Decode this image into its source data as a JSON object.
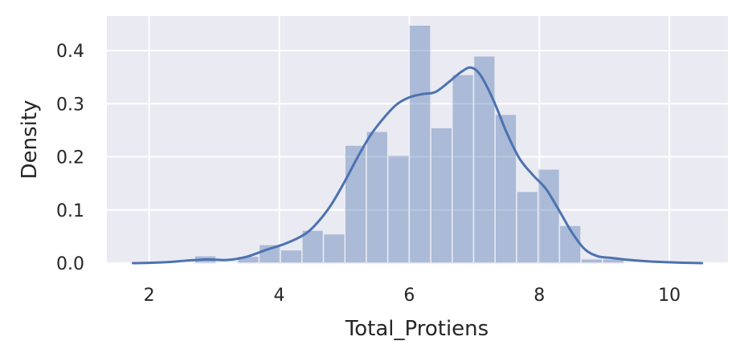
{
  "chart_data": {
    "type": "histogram",
    "xlabel": "Total_Protiens",
    "ylabel": "Density",
    "xlim": [
      1.35,
      10.9
    ],
    "ylim": [
      0,
      0.465
    ],
    "grid": true,
    "x_ticks": [
      2,
      4,
      6,
      8,
      10
    ],
    "x_tick_labels": [
      "2",
      "4",
      "6",
      "8",
      "10"
    ],
    "y_ticks": [
      0.0,
      0.1,
      0.2,
      0.3,
      0.4
    ],
    "y_tick_labels": [
      "0.0",
      "0.1",
      "0.2",
      "0.3",
      "0.4"
    ],
    "bin_width": 0.33,
    "bins": [
      {
        "x0": 2.7,
        "x1": 3.03,
        "density": 0.014
      },
      {
        "x0": 3.03,
        "x1": 3.36,
        "density": 0.0
      },
      {
        "x0": 3.36,
        "x1": 3.69,
        "density": 0.013
      },
      {
        "x0": 3.69,
        "x1": 4.02,
        "density": 0.035
      },
      {
        "x0": 4.02,
        "x1": 4.35,
        "density": 0.025
      },
      {
        "x0": 4.35,
        "x1": 4.68,
        "density": 0.062
      },
      {
        "x0": 4.68,
        "x1": 5.01,
        "density": 0.055
      },
      {
        "x0": 5.01,
        "x1": 5.34,
        "density": 0.222
      },
      {
        "x0": 5.34,
        "x1": 5.67,
        "density": 0.248
      },
      {
        "x0": 5.67,
        "x1": 6.0,
        "density": 0.203
      },
      {
        "x0": 6.0,
        "x1": 6.33,
        "density": 0.448
      },
      {
        "x0": 6.33,
        "x1": 6.66,
        "density": 0.255
      },
      {
        "x0": 6.66,
        "x1": 6.99,
        "density": 0.355
      },
      {
        "x0": 6.99,
        "x1": 7.32,
        "density": 0.39
      },
      {
        "x0": 7.32,
        "x1": 7.65,
        "density": 0.28
      },
      {
        "x0": 7.65,
        "x1": 7.98,
        "density": 0.135
      },
      {
        "x0": 7.98,
        "x1": 8.31,
        "density": 0.177
      },
      {
        "x0": 8.31,
        "x1": 8.64,
        "density": 0.071
      },
      {
        "x0": 8.64,
        "x1": 8.97,
        "density": 0.008
      },
      {
        "x0": 8.97,
        "x1": 9.3,
        "density": 0.008
      }
    ],
    "kde": {
      "x": [
        1.75,
        2.0,
        2.3,
        2.6,
        2.9,
        3.2,
        3.5,
        3.8,
        4.1,
        4.4,
        4.6,
        4.8,
        5.0,
        5.2,
        5.4,
        5.6,
        5.8,
        6.0,
        6.2,
        6.4,
        6.6,
        6.8,
        6.95,
        7.1,
        7.3,
        7.5,
        7.7,
        7.9,
        8.1,
        8.3,
        8.5,
        8.7,
        8.9,
        9.1,
        9.3,
        9.6,
        9.9,
        10.2,
        10.5
      ],
      "y": [
        0.0,
        0.0005,
        0.002,
        0.005,
        0.007,
        0.006,
        0.012,
        0.025,
        0.037,
        0.055,
        0.078,
        0.11,
        0.152,
        0.198,
        0.24,
        0.272,
        0.298,
        0.312,
        0.318,
        0.322,
        0.34,
        0.36,
        0.368,
        0.353,
        0.305,
        0.245,
        0.196,
        0.166,
        0.14,
        0.1,
        0.058,
        0.026,
        0.013,
        0.01,
        0.007,
        0.004,
        0.002,
        0.0008,
        0.0
      ]
    },
    "colors": {
      "background": "#EAEAF2",
      "grid": "#FFFFFF",
      "bar_fill": "#4C72B0",
      "bar_opacity": 0.4,
      "kde_line": "#4C72B0"
    }
  }
}
